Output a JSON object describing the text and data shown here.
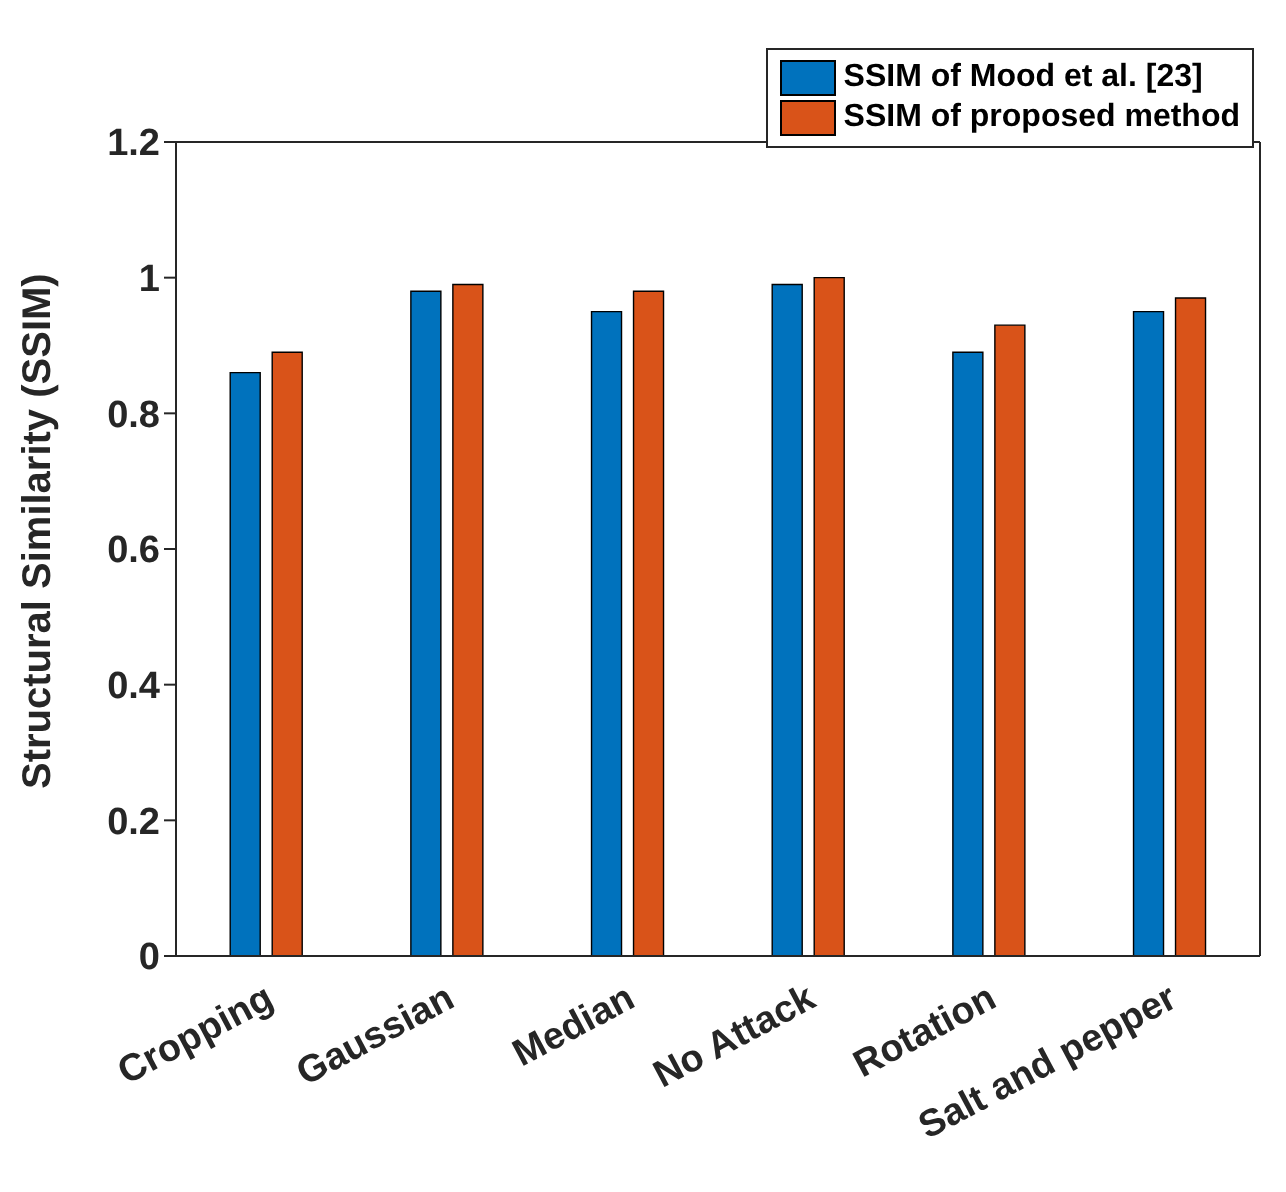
{
  "chart_data": {
    "type": "bar",
    "ylabel": "Structural Similarity (SSIM)",
    "categories": [
      "Cropping",
      "Gaussian",
      "Median",
      "No Attack",
      "Rotation",
      "Salt and pepper"
    ],
    "series": [
      {
        "name": "SSIM of Mood et al. [23]",
        "color": "#0072bd",
        "values": [
          0.86,
          0.98,
          0.95,
          0.99,
          0.89,
          0.95
        ]
      },
      {
        "name": "SSIM of proposed method",
        "color": "#d95319",
        "values": [
          0.89,
          0.99,
          0.98,
          1.0,
          0.93,
          0.97
        ]
      }
    ],
    "ylim": [
      0,
      1.2
    ],
    "yticks": [
      0,
      0.2,
      0.4,
      0.6,
      0.8,
      1,
      1.2
    ],
    "legend": "top right"
  }
}
